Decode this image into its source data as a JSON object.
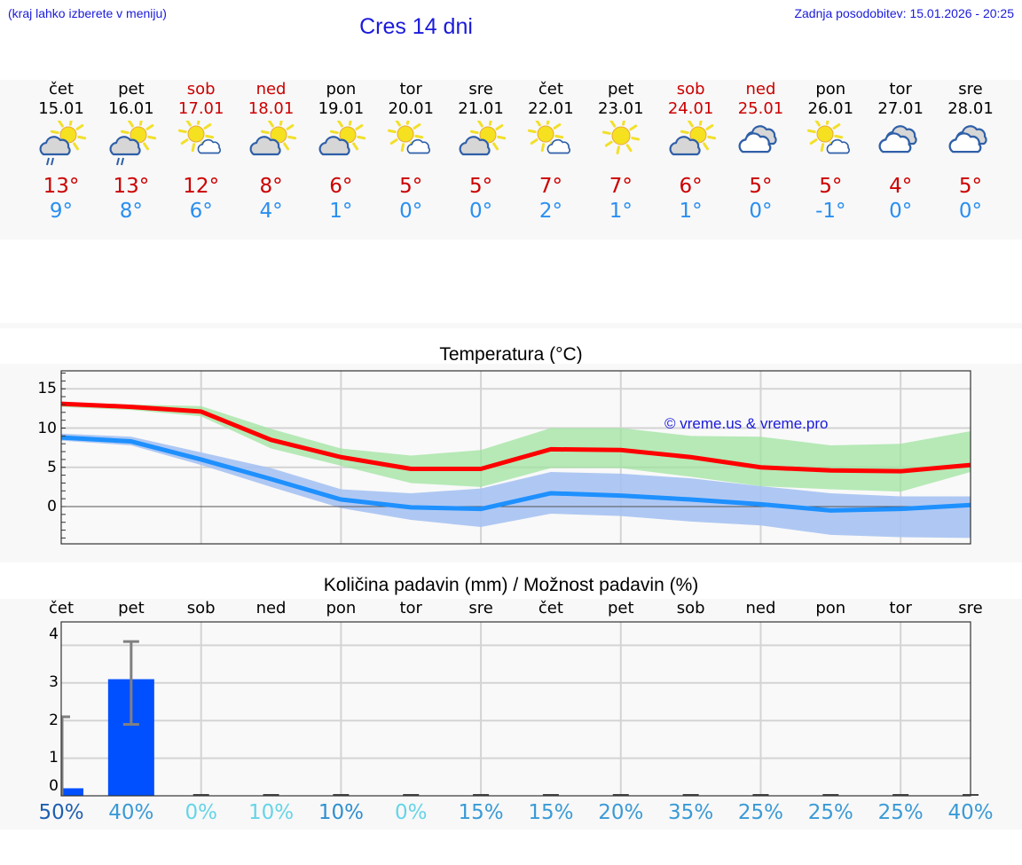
{
  "header": {
    "menu_note": "(kraj lahko izberete v meniju)",
    "title": "Cres 14 dni",
    "last_update": "Zadnja posodobitev: 15.01.2026 - 20:25"
  },
  "days": [
    {
      "name": "čet",
      "date": "15.01",
      "weekend": false,
      "icon": "cloud-sun-rain-icon",
      "tmax": "13°",
      "tmin": "9°"
    },
    {
      "name": "pet",
      "date": "16.01",
      "weekend": false,
      "icon": "cloud-sun-rain-icon",
      "tmax": "13°",
      "tmin": "8°"
    },
    {
      "name": "sob",
      "date": "17.01",
      "weekend": true,
      "icon": "sun-small-cloud-icon",
      "tmax": "12°",
      "tmin": "6°"
    },
    {
      "name": "ned",
      "date": "18.01",
      "weekend": true,
      "icon": "sun-behind-cloud-icon",
      "tmax": "8°",
      "tmin": "4°"
    },
    {
      "name": "pon",
      "date": "19.01",
      "weekend": false,
      "icon": "sun-behind-cloud-icon",
      "tmax": "6°",
      "tmin": "1°"
    },
    {
      "name": "tor",
      "date": "20.01",
      "weekend": false,
      "icon": "sun-small-cloud-icon",
      "tmax": "5°",
      "tmin": "0°"
    },
    {
      "name": "sre",
      "date": "21.01",
      "weekend": false,
      "icon": "sun-behind-cloud-icon",
      "tmax": "5°",
      "tmin": "0°"
    },
    {
      "name": "čet",
      "date": "22.01",
      "weekend": false,
      "icon": "sun-small-cloud-icon",
      "tmax": "7°",
      "tmin": "2°"
    },
    {
      "name": "pet",
      "date": "23.01",
      "weekend": false,
      "icon": "sun-icon",
      "tmax": "7°",
      "tmin": "1°"
    },
    {
      "name": "sob",
      "date": "24.01",
      "weekend": true,
      "icon": "sun-behind-cloud-icon",
      "tmax": "6°",
      "tmin": "1°"
    },
    {
      "name": "ned",
      "date": "25.01",
      "weekend": true,
      "icon": "clouds-icon",
      "tmax": "5°",
      "tmin": "0°"
    },
    {
      "name": "pon",
      "date": "26.01",
      "weekend": false,
      "icon": "sun-small-cloud-icon",
      "tmax": "5°",
      "tmin": "-1°"
    },
    {
      "name": "tor",
      "date": "27.01",
      "weekend": false,
      "icon": "clouds-icon",
      "tmax": "4°",
      "tmin": "0°"
    },
    {
      "name": "sre",
      "date": "28.01",
      "weekend": false,
      "icon": "clouds-icon",
      "tmax": "5°",
      "tmin": "0°"
    }
  ],
  "colors": {
    "weekend": "#cc0000",
    "tmax_line": "#ff0000",
    "tmin_line": "#1e90ff",
    "tmax_band": "#aee8ae",
    "tmin_band": "#adc8f2",
    "overlap_band": "#7fc9a8",
    "precip_bar": "#0050ff",
    "error_bar": "#808080"
  },
  "chart_data": [
    {
      "type": "line",
      "title": "Temperatura (°C)",
      "xlabel": "",
      "ylabel": "",
      "ylim": [
        -4.7,
        17.3
      ],
      "yticks": [
        0,
        5,
        10,
        15
      ],
      "grid": true,
      "watermark": "© vreme.us & vreme.pro",
      "x": [
        "15.01",
        "16.01",
        "17.01",
        "18.01",
        "19.01",
        "20.01",
        "21.01",
        "22.01",
        "23.01",
        "24.01",
        "25.01",
        "26.01",
        "27.01",
        "28.01"
      ],
      "series": [
        {
          "name": "Tmax",
          "color": "#ff0000",
          "values": [
            13.1,
            12.7,
            12.1,
            8.5,
            6.3,
            4.8,
            4.8,
            7.3,
            7.2,
            6.3,
            5.0,
            4.6,
            4.5,
            5.3
          ],
          "band_low": [
            12.7,
            12.3,
            11.5,
            7.4,
            5.2,
            3.0,
            2.5,
            4.9,
            4.9,
            3.8,
            2.6,
            2.2,
            1.9,
            4.4
          ],
          "band_high": [
            13.3,
            13.0,
            12.8,
            9.9,
            7.4,
            6.5,
            7.2,
            10.0,
            10.0,
            9.0,
            8.9,
            7.8,
            8.0,
            9.6
          ]
        },
        {
          "name": "Tmin",
          "color": "#1e90ff",
          "values": [
            8.8,
            8.3,
            6.0,
            3.5,
            0.9,
            -0.1,
            -0.3,
            1.7,
            1.4,
            0.9,
            0.3,
            -0.5,
            -0.3,
            0.2
          ],
          "band_low": [
            8.4,
            7.8,
            5.3,
            2.5,
            -0.2,
            -1.7,
            -2.6,
            -0.9,
            -1.2,
            -1.9,
            -2.4,
            -3.6,
            -3.9,
            -4.0
          ],
          "band_high": [
            9.3,
            8.9,
            6.9,
            4.9,
            2.2,
            1.7,
            2.3,
            4.4,
            4.2,
            3.6,
            2.6,
            1.7,
            1.3,
            1.3
          ]
        }
      ]
    },
    {
      "type": "bar",
      "title": "Količina padavin (mm) / Možnost padavin (%)",
      "xlabel": "",
      "ylabel": "",
      "ylim": [
        0,
        4.3
      ],
      "yticks": [
        0,
        1,
        2,
        3,
        4
      ],
      "grid": true,
      "categories": [
        "čet",
        "pet",
        "sob",
        "ned",
        "pon",
        "tor",
        "sre",
        "čet",
        "pet",
        "sob",
        "ned",
        "pon",
        "tor",
        "sre"
      ],
      "values": [
        0.2,
        3.1,
        0,
        0,
        0,
        0,
        0,
        0,
        0,
        0,
        0,
        0,
        0,
        0
      ],
      "error_high": [
        2.1,
        4.1,
        0,
        0,
        0,
        0,
        0,
        0,
        0,
        0,
        0,
        0,
        0,
        0
      ],
      "error_low": [
        0,
        1.9,
        0,
        0,
        0,
        0,
        0,
        0,
        0,
        0,
        0,
        0,
        0,
        0
      ],
      "chance_percent": [
        "50%",
        "40%",
        "0%",
        "10%",
        "10%",
        "0%",
        "15%",
        "15%",
        "20%",
        "35%",
        "25%",
        "25%",
        "25%",
        "40%"
      ],
      "chance_colors": [
        "#1f5fb0",
        "#3a9ad6",
        "#66d4e8",
        "#66d4e8",
        "#2f8fcf",
        "#66d4e8",
        "#3a9ad6",
        "#3a9ad6",
        "#3a9ad6",
        "#3a9ad6",
        "#3a9ad6",
        "#3a9ad6",
        "#3a9ad6",
        "#3a9ad6"
      ]
    }
  ],
  "temp_chart": {
    "title": "Temperatura (°C)",
    "watermark": "© vreme.us & vreme.pro",
    "yticks": [
      "15",
      "10",
      "5",
      "0"
    ]
  },
  "precip_chart": {
    "title": "Količina padavin (mm) / Možnost padavin (%)",
    "yticks": [
      "4",
      "3",
      "2",
      "1",
      "0"
    ],
    "day_labels": [
      "čet",
      "pet",
      "sob",
      "ned",
      "pon",
      "tor",
      "sre",
      "čet",
      "pet",
      "sob",
      "ned",
      "pon",
      "tor",
      "sre"
    ]
  }
}
